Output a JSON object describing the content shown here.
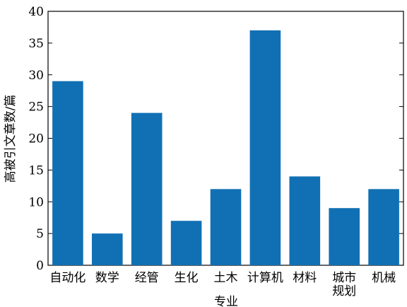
{
  "chart_data": {
    "type": "bar",
    "categories": [
      "自动化",
      "数学",
      "经管",
      "生化",
      "土木",
      "计算机",
      "材料",
      "城市\n规划",
      "机械"
    ],
    "values": [
      29,
      5,
      24,
      7,
      12,
      37,
      14,
      9,
      12
    ],
    "xlabel": "专业",
    "ylabel": "高被引文章数/篇",
    "ylim": [
      0,
      40
    ],
    "yticks": [
      0,
      5,
      10,
      15,
      20,
      25,
      30,
      35,
      40
    ],
    "grid": false,
    "bar_color": "#1170b4"
  }
}
